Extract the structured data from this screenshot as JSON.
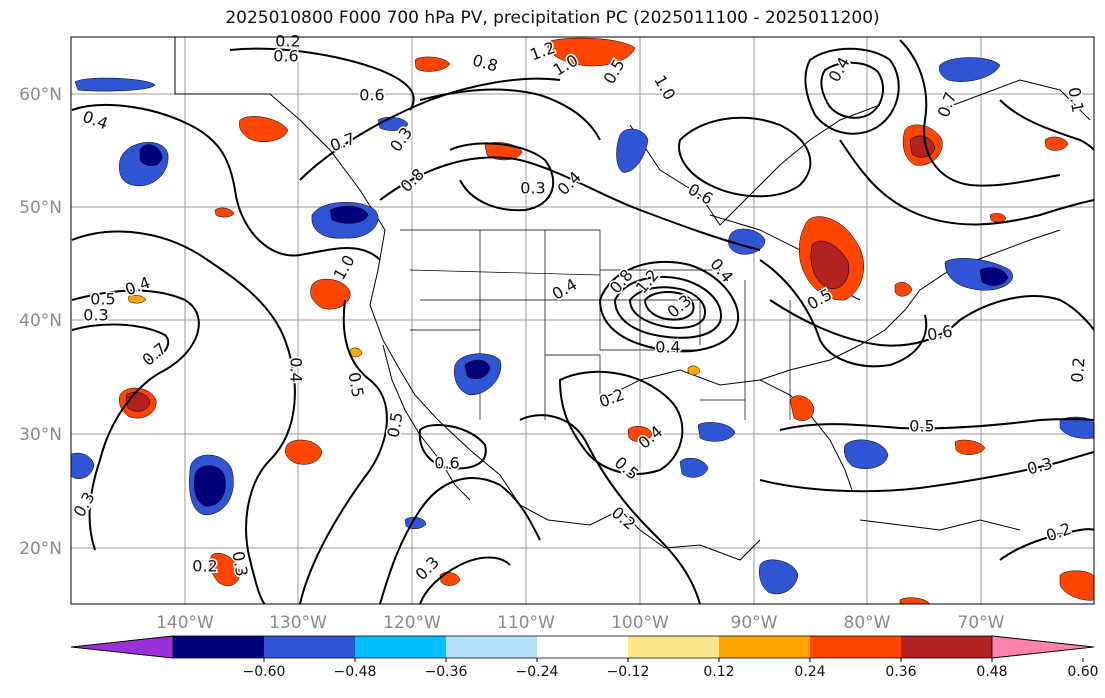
{
  "title": "2025010800 F000 700 hPa PV, precipitation PC (2025011100 - 2025011200)",
  "latitude_labels": [
    "60°N",
    "50°N",
    "40°N",
    "30°N",
    "20°N"
  ],
  "longitude_labels": [
    "140°W",
    "130°W",
    "120°W",
    "110°W",
    "100°W",
    "90°W",
    "80°W",
    "70°W"
  ],
  "colorbar": {
    "colors": [
      "#9b30d9",
      "#00007a",
      "#2f55d4",
      "#00bfff",
      "#b2e0fb",
      "#ffffff",
      "#fde68a",
      "#fea500",
      "#ff4500",
      "#b22222",
      "#ff82ab"
    ],
    "tick_labels": [
      "−0.60",
      "−0.48",
      "−0.36",
      "−0.24",
      "−0.12",
      "0.12",
      "0.24",
      "0.36",
      "0.48",
      "0.60"
    ]
  },
  "contour_labels": [
    "0.6",
    "0.2",
    "1.2",
    "1.0",
    "0.8",
    "0.5",
    "1.0",
    "0.4",
    "0.6",
    "0.7",
    "0.4",
    "0.1",
    "0.7",
    "0.3",
    "0.8",
    "0.6",
    "0.4",
    "0.3",
    "0.4",
    "0.5",
    "0.3",
    "1.0",
    "0.8",
    "0.4",
    "1.2",
    "0.3",
    "0.4",
    "0.7",
    "0.5",
    "0.6",
    "0.4",
    "0.2",
    "0.4",
    "0.5",
    "0.5",
    "0.6",
    "0.4",
    "0.5",
    "0.5",
    "0.3",
    "0.3",
    "0.2",
    "0.3",
    "0.2",
    "0.2",
    "0.3",
    "0.2"
  ]
}
